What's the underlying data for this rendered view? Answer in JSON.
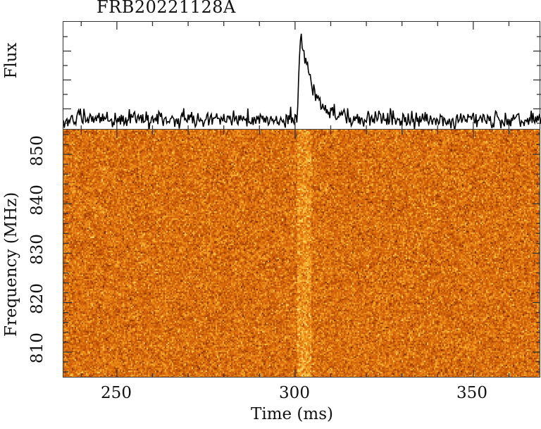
{
  "title": "FRB20221128A",
  "colors": {
    "axis": "#333333",
    "trace": "#000000",
    "cmap": [
      "#6a1e00",
      "#9a3a00",
      "#c05406",
      "#d86a0c",
      "#ea8a18",
      "#f6b030",
      "#ffd860",
      "#fff0a0"
    ]
  },
  "chart_data": [
    {
      "type": "line",
      "panel": "top",
      "title": "FRB20221128A",
      "xlabel": "",
      "ylabel": "Flux",
      "xlim": [
        235,
        369
      ],
      "ytick_labels": [],
      "grid": false,
      "series": [
        {
          "name": "frequency-averaged flux",
          "description": "noisy baseline with a fast-rise, exponential-decay pulse",
          "baseline": 0.0,
          "noise_rms": 0.09,
          "pulse_onset_ms": 300.6,
          "pulse_peak_ms": 301.6,
          "pulse_peak_value": 1.0,
          "decay_timescale_ms": 3.4,
          "samples_per_ms": 4
        }
      ],
      "ylim": [
        -0.12,
        1.12
      ]
    },
    {
      "type": "heatmap",
      "panel": "bottom",
      "xlabel": "Time (ms)",
      "ylabel": "Frequency (MHz)",
      "xlim": [
        235,
        369
      ],
      "ylim": [
        804.7,
        855
      ],
      "xticks": [
        250,
        300,
        350
      ],
      "xtick_labels": [
        "250",
        "300",
        "350"
      ],
      "yticks": [
        810,
        820,
        830,
        840,
        850
      ],
      "ytick_labels": [
        "810",
        "820",
        "830",
        "840",
        "850"
      ],
      "colormap": "heat (dark red → orange → yellow)",
      "signal": {
        "description": "broadband vertical streak at the burst arrival, slightly brighter at lower frequencies",
        "start_ms": 300.6,
        "width_ms": 3.6
      },
      "pixel_size": 2
    }
  ],
  "axes": {
    "flux_label": "Flux",
    "freq_label": "Frequency (MHz)",
    "time_label": "Time (ms)",
    "xticks": [
      {
        "label": "250",
        "value": 250
      },
      {
        "label": "300",
        "value": 300
      },
      {
        "label": "350",
        "value": 350
      }
    ],
    "yticks": [
      {
        "label": "850",
        "value": 850
      },
      {
        "label": "840",
        "value": 840
      },
      {
        "label": "830",
        "value": 830
      },
      {
        "label": "820",
        "value": 820
      },
      {
        "label": "810",
        "value": 810
      }
    ]
  }
}
